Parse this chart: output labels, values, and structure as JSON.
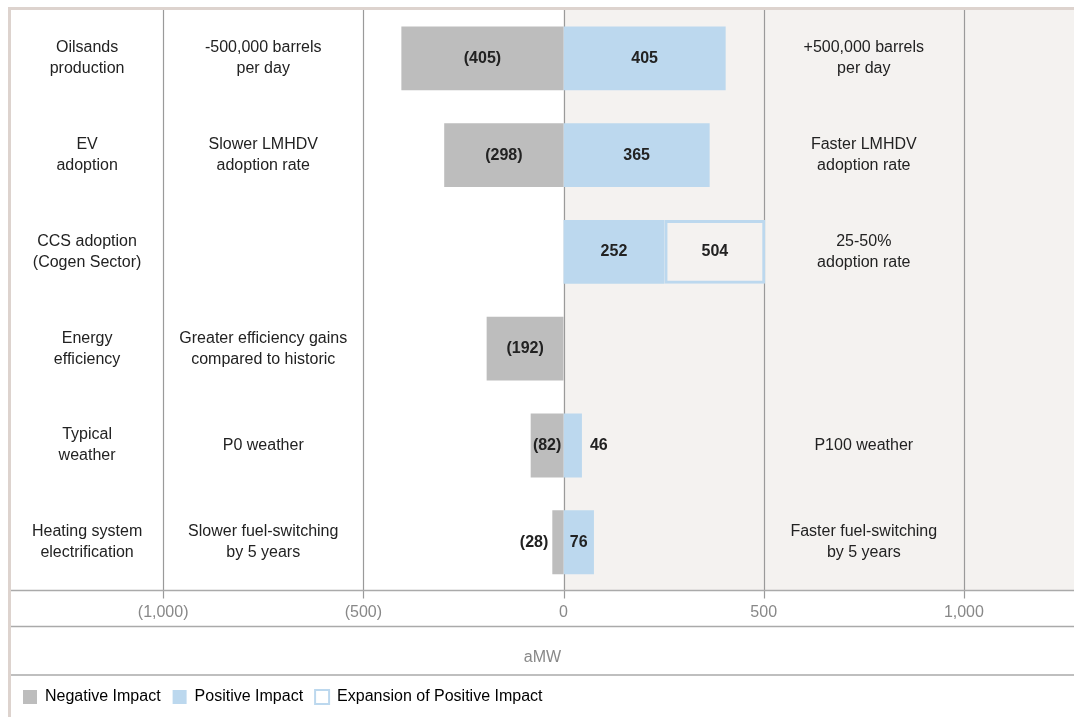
{
  "chart_data": {
    "type": "bar",
    "orientation": "horizontal",
    "stacked": true,
    "categories": [
      "Oilsands\nproduction",
      "EV\nadoption",
      "CCS adoption\n(Cogen Sector)",
      "Energy\nefficiency",
      "Typical\nweather",
      "Heating system\nelectrification"
    ],
    "series": [
      {
        "name": "Negative Impact",
        "color": "#bdbdbd",
        "values": [
          -405,
          -298,
          null,
          -192,
          -82,
          -28
        ],
        "value_labels": [
          "(405)",
          "(298)",
          null,
          "(192)",
          "(82)",
          "(28)"
        ]
      },
      {
        "name": "Positive Impact",
        "color": "#bcd8ee",
        "values": [
          405,
          365,
          252,
          null,
          46,
          76
        ],
        "value_labels": [
          "405",
          "365",
          "252",
          null,
          "46",
          "76"
        ]
      },
      {
        "name": "Expansion of Positive Impact",
        "color": "#bcd8ee",
        "values": [
          null,
          null,
          252,
          null,
          null,
          null
        ]
      }
    ],
    "totals": [
      null,
      null,
      "504",
      null,
      null,
      null
    ],
    "xlim": [
      -1380,
      1275
    ],
    "xticks": [
      {
        "value": -1000,
        "label": "(1,000)"
      },
      {
        "value": -500,
        "label": "(500)"
      },
      0,
      500,
      {
        "value": 1000,
        "label": "1,000"
      }
    ],
    "xlabel": "aMW",
    "grid": "x",
    "legend": "bottom left",
    "bands": [
      {
        "axis": "x",
        "from": 0,
        "to": 1275,
        "color": "#f4f2f0"
      }
    ],
    "annotations": [
      "-500,000 barrels\nper day",
      "+500,000 barrels\nper day",
      "Slower LMHDV\nadoption rate",
      "Faster LMHDV\nadoption rate",
      null,
      "25-50%\nadoption rate",
      "Greater efficiency gains\ncompared to historic",
      null,
      "P0 weather",
      "P100 weather",
      "Slower fuel-switching\nby 5 years",
      "Faster fuel-switching\nby 5 years"
    ]
  }
}
